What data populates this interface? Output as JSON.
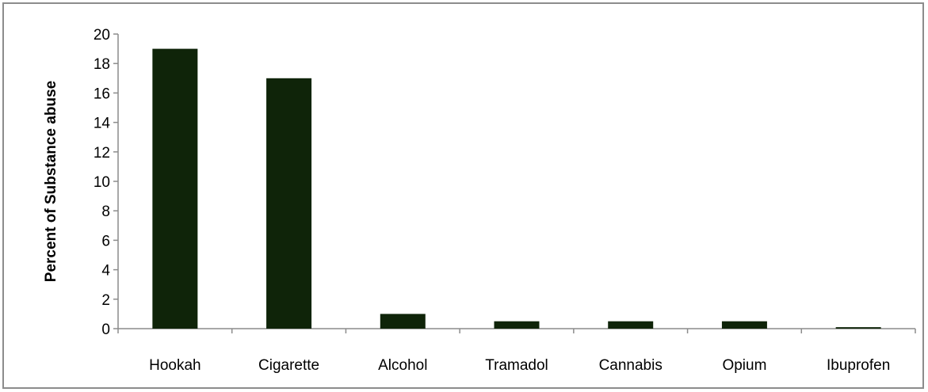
{
  "colors": {
    "bar": "#0f2409",
    "axis": "#8c8c8c",
    "frame": "#8c8c8c"
  },
  "chart_data": {
    "type": "bar",
    "title": "",
    "xlabel": "",
    "ylabel": "Percent of Substance abuse",
    "categories": [
      "Hookah",
      "Cigarette",
      "Alcohol",
      "Tramadol",
      "Cannabis",
      "Opium",
      "Ibuprofen"
    ],
    "values": [
      19,
      17,
      1,
      0.5,
      0.5,
      0.5,
      0.1
    ],
    "ylim": [
      0,
      20
    ],
    "yticks": [
      0,
      2,
      4,
      6,
      8,
      10,
      12,
      14,
      16,
      18,
      20
    ],
    "grid": false,
    "legend": "none"
  }
}
